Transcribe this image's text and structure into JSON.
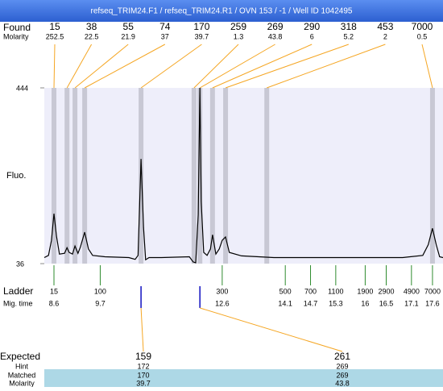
{
  "title": "refseq_TRIM24.F1 / refseq_TRIM24.R1 / OVN 153 / -1 / Well ID 1042495",
  "chart_data": {
    "type": "electropherogram",
    "ylabel": "Fluo.",
    "ylim": [
      36,
      444
    ],
    "yticks": [
      36,
      444
    ],
    "xlim": [
      8.37,
      17.85
    ],
    "trace": {
      "color": "#000000",
      "x": [
        8.37,
        8.47,
        8.54,
        8.6,
        8.66,
        8.73,
        8.85,
        8.91,
        8.96,
        9.04,
        9.1,
        9.17,
        9.23,
        9.33,
        9.42,
        9.52,
        9.81,
        10.38,
        10.53,
        10.6,
        10.67,
        10.73,
        10.78,
        10.86,
        11.15,
        11.82,
        11.91,
        11.97,
        12.03,
        12.07,
        12.1,
        12.16,
        12.24,
        12.32,
        12.37,
        12.45,
        12.53,
        12.6,
        12.68,
        12.77,
        13.06,
        13.83,
        14.98,
        16.89,
        17.37,
        17.5,
        17.6,
        17.69,
        17.77,
        17.85
      ],
      "y": [
        50,
        55,
        90,
        152,
        100,
        58,
        60,
        73,
        62,
        58,
        77,
        60,
        75,
        109,
        70,
        55,
        52,
        50,
        46,
        55,
        279,
        120,
        45,
        50,
        50,
        52,
        40,
        38,
        150,
        444,
        180,
        62,
        55,
        70,
        103,
        58,
        70,
        90,
        98,
        62,
        54,
        50,
        50,
        50,
        55,
        80,
        118,
        80,
        52,
        50
      ]
    },
    "found": {
      "label": "Found",
      "molarity_label": "Molarity",
      "sizes": [
        15,
        38,
        55,
        74,
        170,
        259,
        269,
        290,
        318,
        453,
        7000
      ],
      "molarity": [
        252.5,
        22.5,
        21.9,
        37,
        39.7,
        1.3,
        43.8,
        6,
        5.2,
        2,
        0.5
      ],
      "times": [
        8.6,
        8.91,
        9.1,
        9.33,
        10.67,
        11.93,
        12.07,
        12.37,
        12.68,
        13.66,
        17.6
      ]
    },
    "ladder": {
      "label": "Ladder",
      "time_label": "Mig. time",
      "sizes": [
        15,
        100,
        300,
        500,
        700,
        1100,
        1900,
        2900,
        4900,
        7000
      ],
      "times": [
        8.6,
        9.7,
        12.6,
        14.1,
        14.7,
        15.3,
        16,
        16.5,
        17.1,
        17.6
      ]
    },
    "expected": {
      "label": "Expected",
      "hint_label": "Hint",
      "matched_label": "Matched",
      "molarity_label": "Molarity",
      "values": [
        159,
        261
      ],
      "hint": [
        172,
        269
      ],
      "matched": [
        170,
        269
      ],
      "molarity": [
        39.7,
        43.8
      ]
    }
  }
}
